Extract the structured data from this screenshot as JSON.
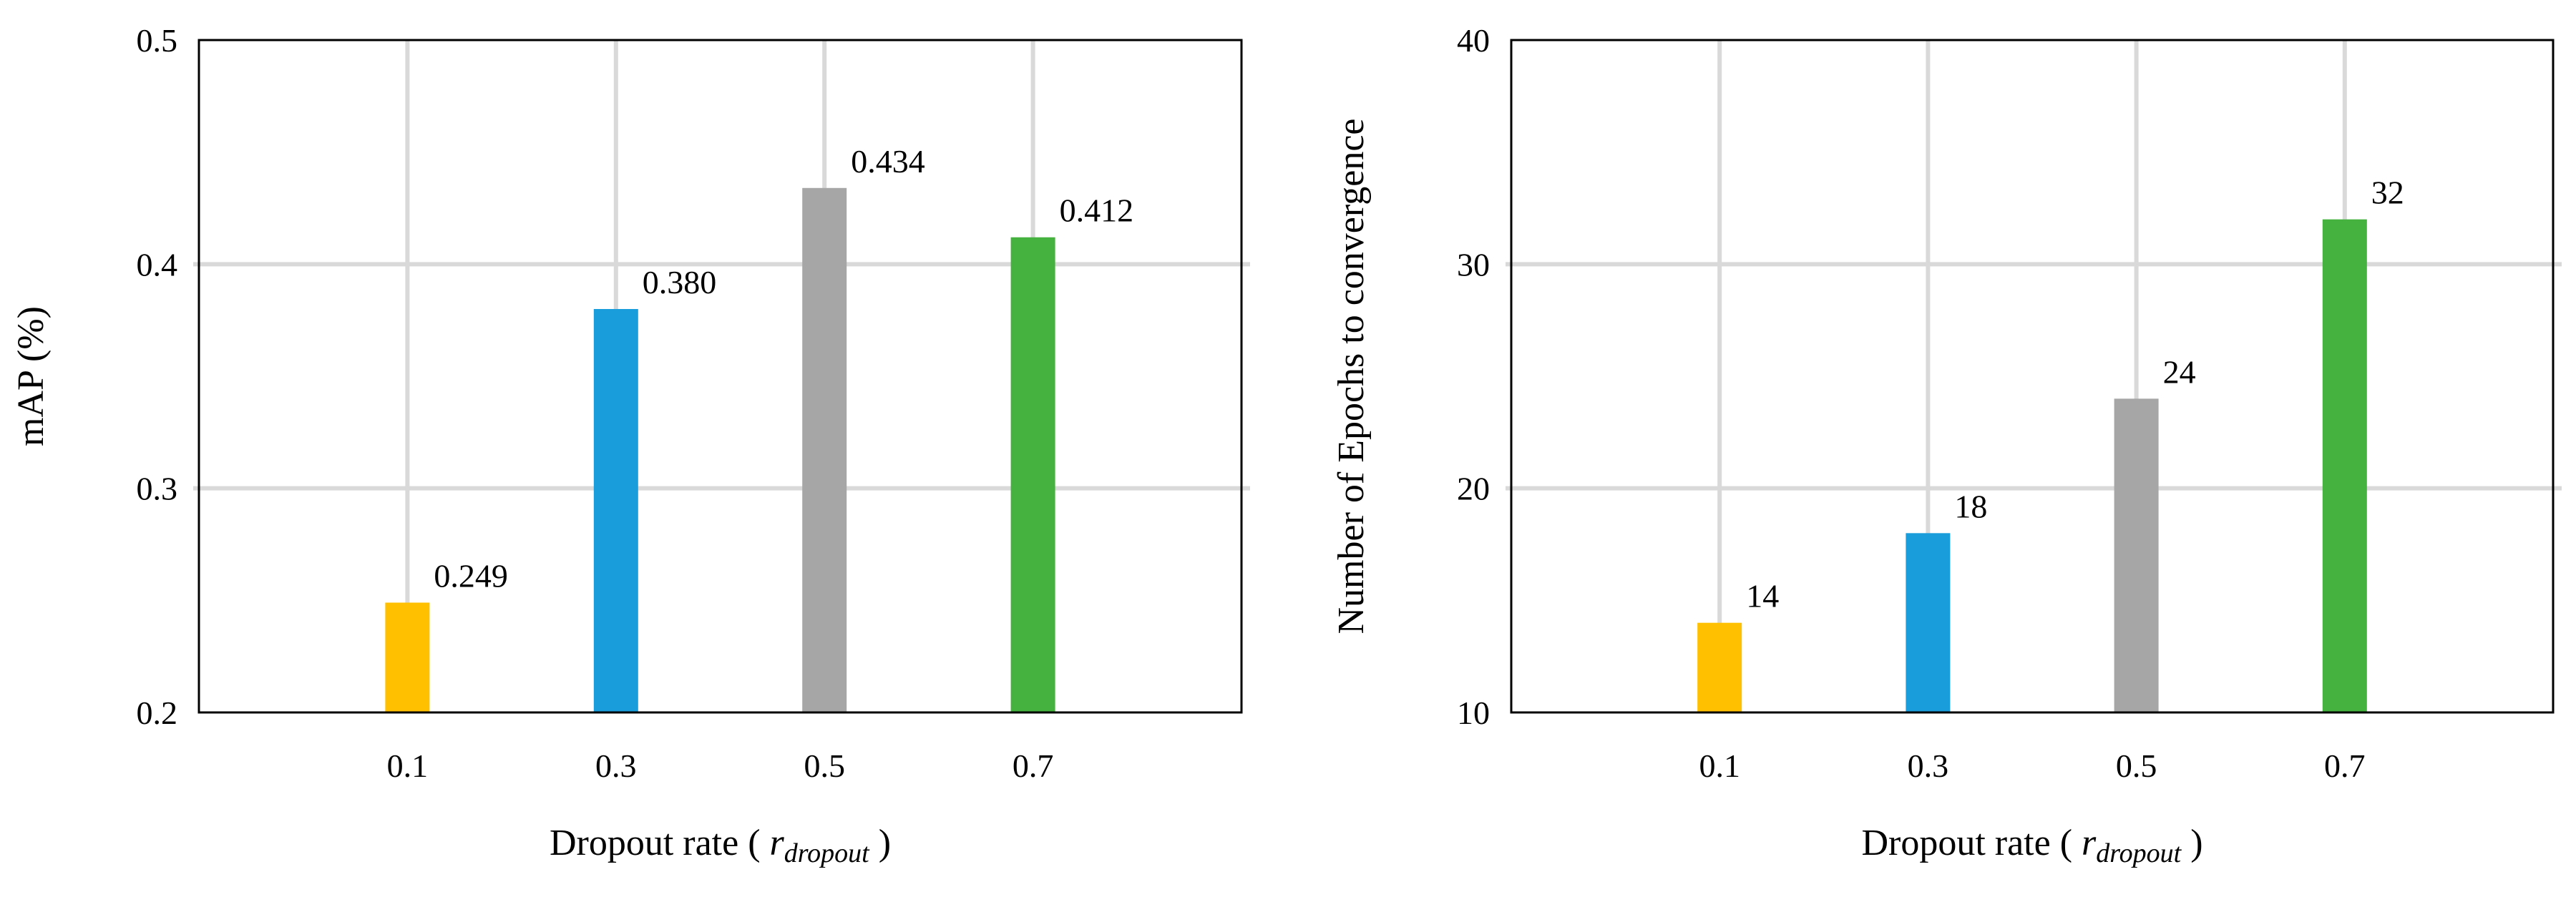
{
  "chart_data": [
    {
      "type": "bar",
      "categories": [
        "0.1",
        "0.3",
        "0.5",
        "0.7"
      ],
      "values": [
        0.249,
        0.38,
        0.434,
        0.412
      ],
      "data_labels": [
        "0.249",
        "0.380",
        "0.434",
        "0.412"
      ],
      "bar_colors": [
        "#FFC000",
        "#1A9DDB",
        "#A6A6A6",
        "#45B13E"
      ],
      "y_ticks": [
        "0.2",
        "0.3",
        "0.4",
        "0.5"
      ],
      "ylim": [
        0.2,
        0.5
      ],
      "ylabel": "mAP (%)",
      "xlabel_prefix": "Dropout rate (",
      "xlabel_symbol": "r",
      "xlabel_subscript": "dropout",
      "xlabel_suffix": ")",
      "title": "",
      "grid": true
    },
    {
      "type": "bar",
      "categories": [
        "0.1",
        "0.3",
        "0.5",
        "0.7"
      ],
      "values": [
        14,
        18,
        24,
        32
      ],
      "data_labels": [
        "14",
        "18",
        "24",
        "32"
      ],
      "bar_colors": [
        "#FFC000",
        "#1A9DDB",
        "#A6A6A6",
        "#45B13E"
      ],
      "y_ticks": [
        "10",
        "20",
        "30",
        "40"
      ],
      "ylim": [
        10,
        40
      ],
      "ylabel": "Number of Epochs to convergence",
      "xlabel_prefix": "Dropout rate (",
      "xlabel_symbol": "r",
      "xlabel_subscript": "dropout",
      "xlabel_suffix": ")",
      "title": "",
      "grid": true
    }
  ]
}
